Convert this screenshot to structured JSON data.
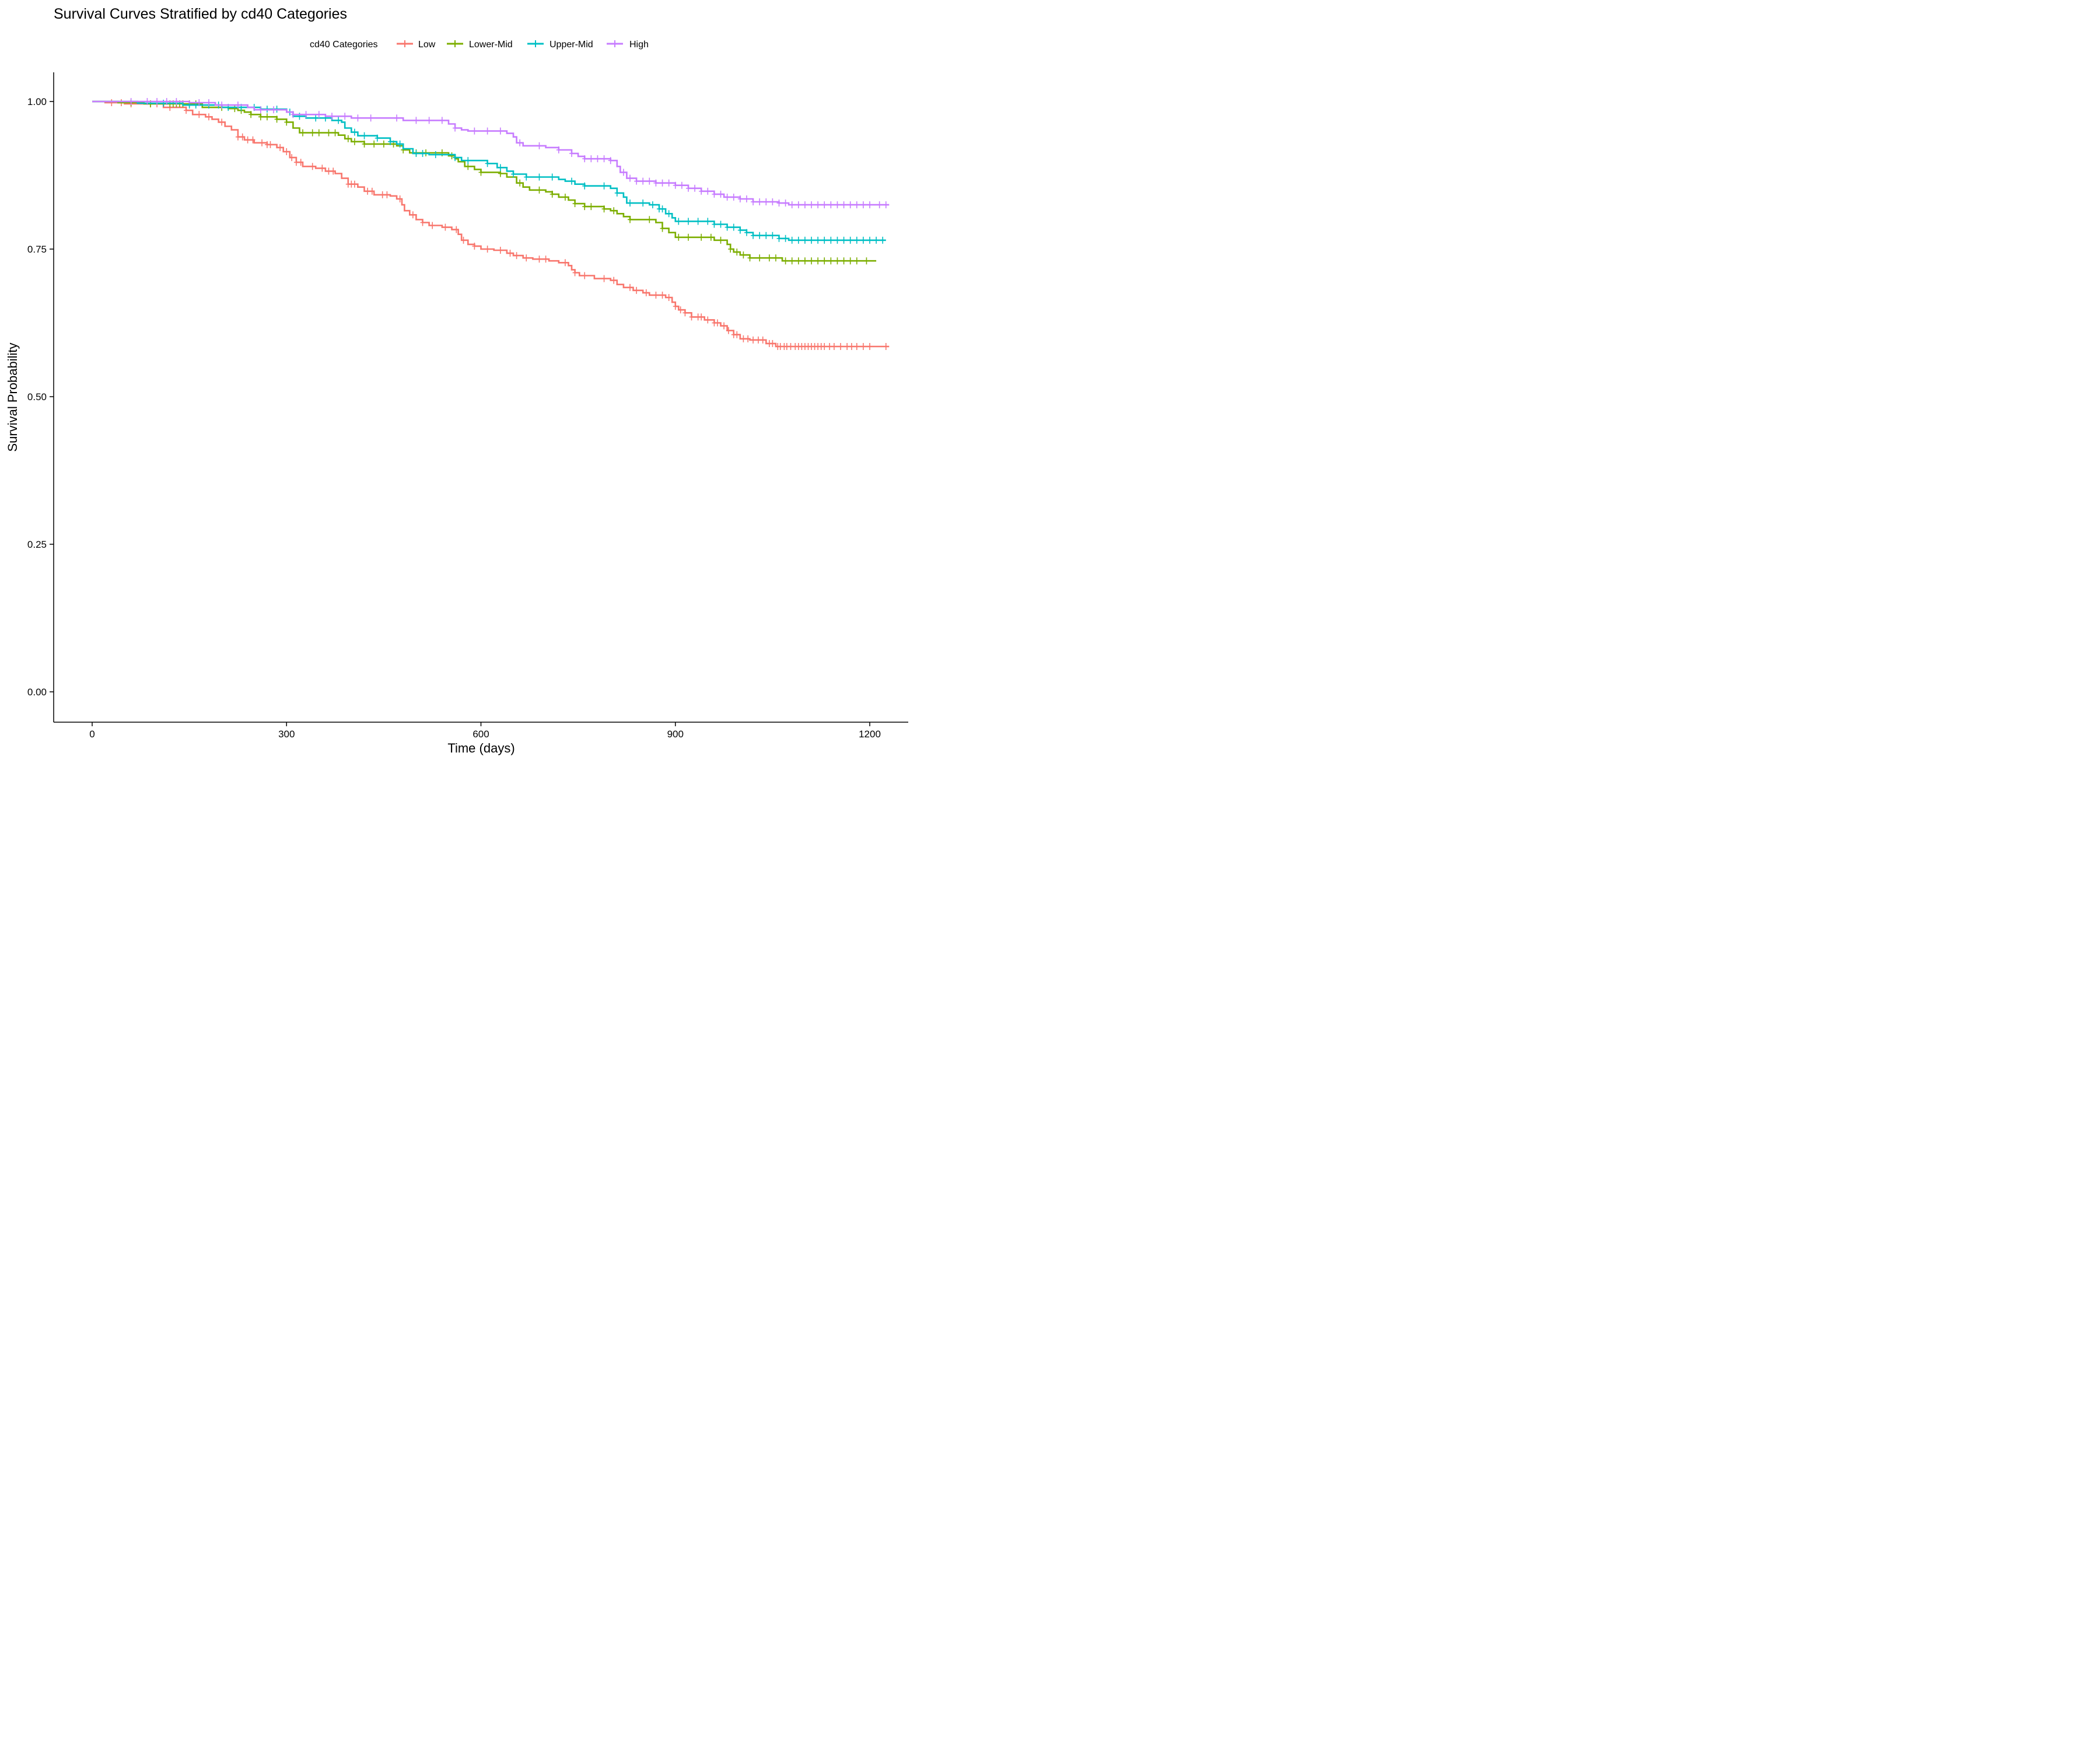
{
  "chart_data": {
    "type": "line",
    "title": "Survival Curves Stratified by cd40 Categories",
    "xlabel": "Time (days)",
    "ylabel": "Survival Probability",
    "xlim": [
      -60,
      1255
    ],
    "ylim": [
      -0.05,
      1.05
    ],
    "xticks": [
      0,
      300,
      600,
      900,
      1200
    ],
    "xtick_labels": [
      "0",
      "300",
      "600",
      "900",
      "1200"
    ],
    "yticks": [
      0,
      0.25,
      0.5,
      0.75,
      1.0
    ],
    "ytick_labels": [
      "0.00",
      "0.25",
      "0.50",
      "0.75",
      "1.00"
    ],
    "grid": false,
    "legend": {
      "title": "cd40 Categories",
      "placement": "top"
    },
    "series": [
      {
        "name": "Low",
        "color": "#F8766D",
        "steps": [
          [
            0,
            1.0
          ],
          [
            20,
            0.998
          ],
          [
            50,
            0.996
          ],
          [
            110,
            0.99
          ],
          [
            145,
            0.985
          ],
          [
            155,
            0.978
          ],
          [
            175,
            0.974
          ],
          [
            185,
            0.97
          ],
          [
            195,
            0.965
          ],
          [
            205,
            0.958
          ],
          [
            215,
            0.952
          ],
          [
            225,
            0.94
          ],
          [
            235,
            0.935
          ],
          [
            250,
            0.93
          ],
          [
            270,
            0.927
          ],
          [
            285,
            0.922
          ],
          [
            295,
            0.915
          ],
          [
            305,
            0.905
          ],
          [
            315,
            0.897
          ],
          [
            325,
            0.89
          ],
          [
            345,
            0.887
          ],
          [
            360,
            0.882
          ],
          [
            375,
            0.878
          ],
          [
            385,
            0.87
          ],
          [
            395,
            0.86
          ],
          [
            410,
            0.855
          ],
          [
            420,
            0.848
          ],
          [
            435,
            0.842
          ],
          [
            460,
            0.84
          ],
          [
            470,
            0.835
          ],
          [
            478,
            0.825
          ],
          [
            482,
            0.815
          ],
          [
            490,
            0.808
          ],
          [
            500,
            0.8
          ],
          [
            510,
            0.795
          ],
          [
            520,
            0.79
          ],
          [
            540,
            0.787
          ],
          [
            555,
            0.783
          ],
          [
            565,
            0.775
          ],
          [
            570,
            0.765
          ],
          [
            580,
            0.758
          ],
          [
            590,
            0.755
          ],
          [
            600,
            0.75
          ],
          [
            620,
            0.748
          ],
          [
            640,
            0.743
          ],
          [
            650,
            0.739
          ],
          [
            665,
            0.735
          ],
          [
            680,
            0.733
          ],
          [
            705,
            0.73
          ],
          [
            720,
            0.727
          ],
          [
            735,
            0.722
          ],
          [
            740,
            0.715
          ],
          [
            745,
            0.71
          ],
          [
            752,
            0.705
          ],
          [
            775,
            0.7
          ],
          [
            800,
            0.697
          ],
          [
            810,
            0.69
          ],
          [
            820,
            0.685
          ],
          [
            835,
            0.68
          ],
          [
            850,
            0.676
          ],
          [
            860,
            0.672
          ],
          [
            885,
            0.668
          ],
          [
            895,
            0.66
          ],
          [
            900,
            0.653
          ],
          [
            905,
            0.647
          ],
          [
            915,
            0.642
          ],
          [
            925,
            0.635
          ],
          [
            945,
            0.63
          ],
          [
            960,
            0.625
          ],
          [
            970,
            0.62
          ],
          [
            980,
            0.612
          ],
          [
            990,
            0.605
          ],
          [
            1000,
            0.598
          ],
          [
            1015,
            0.596
          ],
          [
            1040,
            0.59
          ],
          [
            1055,
            0.585
          ],
          [
            1230,
            0.585
          ]
        ],
        "censor_times": [
          30,
          45,
          60,
          90,
          100,
          120,
          145,
          165,
          180,
          200,
          225,
          232,
          240,
          248,
          262,
          270,
          275,
          290,
          300,
          308,
          315,
          322,
          340,
          355,
          365,
          372,
          395,
          400,
          405,
          425,
          432,
          448,
          455,
          475,
          495,
          510,
          525,
          545,
          562,
          573,
          590,
          610,
          630,
          645,
          655,
          670,
          690,
          700,
          730,
          745,
          760,
          790,
          805,
          830,
          840,
          855,
          870,
          880,
          890,
          900,
          908,
          915,
          925,
          935,
          940,
          950,
          960,
          965,
          975,
          982,
          990,
          995,
          1005,
          1012,
          1020,
          1028,
          1035,
          1045,
          1050,
          1058,
          1062,
          1068,
          1072,
          1078,
          1085,
          1090,
          1095,
          1100,
          1105,
          1110,
          1115,
          1120,
          1125,
          1130,
          1138,
          1145,
          1155,
          1165,
          1172,
          1180,
          1190,
          1200,
          1225
        ]
      },
      {
        "name": "Lower-Mid",
        "color": "#7CAE00",
        "steps": [
          [
            0,
            1.0
          ],
          [
            40,
            0.998
          ],
          [
            80,
            0.996
          ],
          [
            170,
            0.99
          ],
          [
            210,
            0.988
          ],
          [
            225,
            0.985
          ],
          [
            235,
            0.982
          ],
          [
            245,
            0.978
          ],
          [
            260,
            0.974
          ],
          [
            285,
            0.97
          ],
          [
            300,
            0.965
          ],
          [
            310,
            0.955
          ],
          [
            320,
            0.947
          ],
          [
            380,
            0.943
          ],
          [
            390,
            0.937
          ],
          [
            400,
            0.932
          ],
          [
            420,
            0.928
          ],
          [
            470,
            0.925
          ],
          [
            480,
            0.918
          ],
          [
            490,
            0.913
          ],
          [
            550,
            0.908
          ],
          [
            560,
            0.903
          ],
          [
            565,
            0.898
          ],
          [
            575,
            0.89
          ],
          [
            590,
            0.885
          ],
          [
            600,
            0.88
          ],
          [
            630,
            0.878
          ],
          [
            640,
            0.872
          ],
          [
            655,
            0.862
          ],
          [
            665,
            0.855
          ],
          [
            675,
            0.85
          ],
          [
            700,
            0.847
          ],
          [
            710,
            0.843
          ],
          [
            720,
            0.838
          ],
          [
            735,
            0.833
          ],
          [
            745,
            0.827
          ],
          [
            760,
            0.822
          ],
          [
            790,
            0.818
          ],
          [
            800,
            0.815
          ],
          [
            810,
            0.81
          ],
          [
            820,
            0.805
          ],
          [
            830,
            0.8
          ],
          [
            870,
            0.795
          ],
          [
            880,
            0.785
          ],
          [
            890,
            0.778
          ],
          [
            900,
            0.77
          ],
          [
            960,
            0.765
          ],
          [
            980,
            0.758
          ],
          [
            985,
            0.75
          ],
          [
            990,
            0.745
          ],
          [
            1000,
            0.74
          ],
          [
            1015,
            0.735
          ],
          [
            1065,
            0.73
          ],
          [
            1210,
            0.73
          ]
        ],
        "censor_times": [
          60,
          90,
          120,
          125,
          130,
          135,
          140,
          150,
          160,
          200,
          220,
          230,
          245,
          260,
          270,
          285,
          300,
          325,
          340,
          350,
          365,
          375,
          395,
          405,
          420,
          435,
          450,
          465,
          480,
          500,
          515,
          540,
          555,
          580,
          600,
          630,
          660,
          690,
          710,
          730,
          745,
          760,
          770,
          790,
          805,
          830,
          860,
          880,
          905,
          920,
          940,
          955,
          970,
          985,
          995,
          1005,
          1015,
          1030,
          1045,
          1055,
          1070,
          1080,
          1090,
          1100,
          1110,
          1120,
          1130,
          1140,
          1150,
          1160,
          1170,
          1180,
          1195
        ]
      },
      {
        "name": "Upper-Mid",
        "color": "#00BFC4",
        "steps": [
          [
            0,
            1.0
          ],
          [
            70,
            0.997
          ],
          [
            140,
            0.994
          ],
          [
            200,
            0.99
          ],
          [
            260,
            0.987
          ],
          [
            300,
            0.982
          ],
          [
            310,
            0.975
          ],
          [
            330,
            0.972
          ],
          [
            370,
            0.968
          ],
          [
            385,
            0.965
          ],
          [
            390,
            0.955
          ],
          [
            400,
            0.948
          ],
          [
            410,
            0.942
          ],
          [
            440,
            0.938
          ],
          [
            460,
            0.932
          ],
          [
            470,
            0.928
          ],
          [
            480,
            0.92
          ],
          [
            495,
            0.912
          ],
          [
            520,
            0.91
          ],
          [
            560,
            0.905
          ],
          [
            570,
            0.9
          ],
          [
            610,
            0.895
          ],
          [
            625,
            0.888
          ],
          [
            640,
            0.882
          ],
          [
            650,
            0.877
          ],
          [
            670,
            0.872
          ],
          [
            720,
            0.868
          ],
          [
            730,
            0.865
          ],
          [
            745,
            0.86
          ],
          [
            760,
            0.857
          ],
          [
            800,
            0.853
          ],
          [
            810,
            0.845
          ],
          [
            820,
            0.838
          ],
          [
            825,
            0.828
          ],
          [
            860,
            0.825
          ],
          [
            875,
            0.818
          ],
          [
            885,
            0.81
          ],
          [
            895,
            0.803
          ],
          [
            900,
            0.797
          ],
          [
            960,
            0.792
          ],
          [
            980,
            0.787
          ],
          [
            1000,
            0.782
          ],
          [
            1010,
            0.778
          ],
          [
            1020,
            0.773
          ],
          [
            1060,
            0.768
          ],
          [
            1075,
            0.765
          ],
          [
            1225,
            0.765
          ]
        ],
        "censor_times": [
          110,
          150,
          160,
          180,
          195,
          210,
          230,
          250,
          270,
          285,
          305,
          320,
          345,
          360,
          380,
          405,
          420,
          440,
          460,
          475,
          500,
          510,
          530,
          560,
          580,
          610,
          630,
          650,
          670,
          690,
          710,
          740,
          760,
          790,
          810,
          830,
          850,
          865,
          875,
          880,
          890,
          905,
          920,
          935,
          950,
          960,
          970,
          980,
          990,
          1000,
          1010,
          1020,
          1030,
          1040,
          1050,
          1060,
          1070,
          1080,
          1090,
          1100,
          1110,
          1120,
          1130,
          1140,
          1150,
          1160,
          1170,
          1180,
          1190,
          1200,
          1210,
          1220
        ]
      },
      {
        "name": "High",
        "color": "#C77CFF",
        "steps": [
          [
            0,
            1.0
          ],
          [
            150,
            0.998
          ],
          [
            190,
            0.994
          ],
          [
            240,
            0.99
          ],
          [
            250,
            0.986
          ],
          [
            300,
            0.982
          ],
          [
            310,
            0.978
          ],
          [
            360,
            0.975
          ],
          [
            400,
            0.972
          ],
          [
            480,
            0.968
          ],
          [
            550,
            0.962
          ],
          [
            560,
            0.955
          ],
          [
            570,
            0.952
          ],
          [
            580,
            0.95
          ],
          [
            640,
            0.946
          ],
          [
            650,
            0.94
          ],
          [
            655,
            0.93
          ],
          [
            665,
            0.925
          ],
          [
            700,
            0.922
          ],
          [
            720,
            0.918
          ],
          [
            740,
            0.912
          ],
          [
            750,
            0.907
          ],
          [
            760,
            0.903
          ],
          [
            800,
            0.9
          ],
          [
            810,
            0.89
          ],
          [
            815,
            0.88
          ],
          [
            825,
            0.87
          ],
          [
            840,
            0.865
          ],
          [
            870,
            0.862
          ],
          [
            900,
            0.858
          ],
          [
            920,
            0.853
          ],
          [
            940,
            0.848
          ],
          [
            960,
            0.843
          ],
          [
            975,
            0.838
          ],
          [
            1000,
            0.835
          ],
          [
            1020,
            0.83
          ],
          [
            1060,
            0.828
          ],
          [
            1075,
            0.825
          ],
          [
            1230,
            0.825
          ]
        ],
        "censor_times": [
          60,
          85,
          100,
          115,
          130,
          165,
          180,
          200,
          225,
          260,
          280,
          310,
          330,
          350,
          370,
          390,
          410,
          430,
          470,
          500,
          520,
          540,
          560,
          590,
          610,
          630,
          660,
          690,
          720,
          740,
          760,
          770,
          780,
          790,
          800,
          820,
          830,
          840,
          850,
          860,
          870,
          880,
          890,
          900,
          910,
          920,
          930,
          940,
          950,
          960,
          970,
          980,
          990,
          1000,
          1010,
          1020,
          1030,
          1040,
          1050,
          1060,
          1070,
          1080,
          1090,
          1100,
          1110,
          1120,
          1130,
          1140,
          1150,
          1160,
          1170,
          1180,
          1190,
          1200,
          1215,
          1225
        ]
      }
    ]
  }
}
